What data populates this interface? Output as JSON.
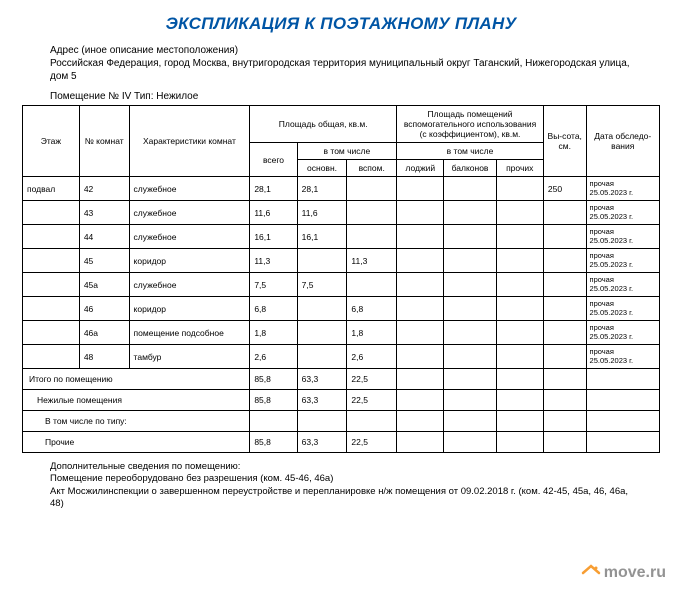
{
  "title": "ЭКСПЛИКАЦИЯ К ПОЭТАЖНОМУ ПЛАНУ",
  "address_label": "Адрес (иное описание местоположения)",
  "address_line": "Российская Федерация, город Москва, внутригородская территория муниципальный округ Таганский, Нижегородская улица, дом 5",
  "premise": "Помещение № IV Тип: Нежилое",
  "headers": {
    "floor": "Этаж",
    "room_no": "№ комнат",
    "char": "Характеристики комнат",
    "area_total": "Площадь общая, кв.м.",
    "area_aux": "Площадь помещений вспомогательного использования (с коэффициентом), кв.м.",
    "height": "Вы-сота, см.",
    "date": "Дата обследо-вания",
    "vsego": "всего",
    "vtom": "в том числе",
    "osnov": "основн.",
    "vspom": "вспом.",
    "lodzh": "лоджий",
    "balkon": "балконов",
    "proch": "прочих"
  },
  "rows": [
    {
      "floor": "подвал",
      "no": "42",
      "char": "служебное",
      "vsego": "28,1",
      "osnov": "28,1",
      "vspom": "",
      "lodzh": "",
      "balkon": "",
      "proch": "",
      "h": "250",
      "date": "прочая 25.05.2023 г."
    },
    {
      "floor": "",
      "no": "43",
      "char": "служебное",
      "vsego": "11,6",
      "osnov": "11,6",
      "vspom": "",
      "lodzh": "",
      "balkon": "",
      "proch": "",
      "h": "",
      "date": "прочая 25.05.2023 г."
    },
    {
      "floor": "",
      "no": "44",
      "char": "служебное",
      "vsego": "16,1",
      "osnov": "16,1",
      "vspom": "",
      "lodzh": "",
      "balkon": "",
      "proch": "",
      "h": "",
      "date": "прочая 25.05.2023 г."
    },
    {
      "floor": "",
      "no": "45",
      "char": "коридор",
      "vsego": "11,3",
      "osnov": "",
      "vspom": "11,3",
      "lodzh": "",
      "balkon": "",
      "proch": "",
      "h": "",
      "date": "прочая 25.05.2023 г."
    },
    {
      "floor": "",
      "no": "45а",
      "char": "служебное",
      "vsego": "7,5",
      "osnov": "7,5",
      "vspom": "",
      "lodzh": "",
      "balkon": "",
      "proch": "",
      "h": "",
      "date": "прочая 25.05.2023 г."
    },
    {
      "floor": "",
      "no": "46",
      "char": "коридор",
      "vsego": "6,8",
      "osnov": "",
      "vspom": "6,8",
      "lodzh": "",
      "balkon": "",
      "proch": "",
      "h": "",
      "date": "прочая 25.05.2023 г."
    },
    {
      "floor": "",
      "no": "46а",
      "char": "помещение подсобное",
      "vsego": "1,8",
      "osnov": "",
      "vspom": "1,8",
      "lodzh": "",
      "balkon": "",
      "proch": "",
      "h": "",
      "date": "прочая 25.05.2023 г."
    },
    {
      "floor": "",
      "no": "48",
      "char": "тамбур",
      "vsego": "2,6",
      "osnov": "",
      "vspom": "2,6",
      "lodzh": "",
      "balkon": "",
      "proch": "",
      "h": "",
      "date": "прочая 25.05.2023 г."
    }
  ],
  "totals": {
    "itogo_label": "Итого по помещению",
    "itogo": {
      "vsego": "85,8",
      "osnov": "63,3",
      "vspom": "22,5"
    },
    "nezh_label": "Нежилые помещения",
    "nezh": {
      "vsego": "85,8",
      "osnov": "63,3",
      "vspom": "22,5"
    },
    "vtom_label": "В том числе по типу:",
    "proch_label": "Прочие",
    "proch": {
      "vsego": "85,8",
      "osnov": "63,3",
      "vspom": "22,5"
    }
  },
  "footer": {
    "l1": "Дополнительные сведения по помещению:",
    "l2": "Помещение переоборудовано без разрешения (ком. 45-46, 46а)",
    "l3": "Акт Мосжилинспекции о завершенном переустройстве и перепланировке н/ж помещения от 09.02.2018 г. (ком. 42-45, 45а, 46, 46а, 48)"
  },
  "watermark": "move.ru",
  "styling": {
    "title_color": "#0055a5",
    "border_color": "#000000",
    "background": "#ffffff",
    "font_family": "Arial",
    "title_fontsize": 17,
    "body_fontsize": 10,
    "table_fontsize": 8.5
  }
}
